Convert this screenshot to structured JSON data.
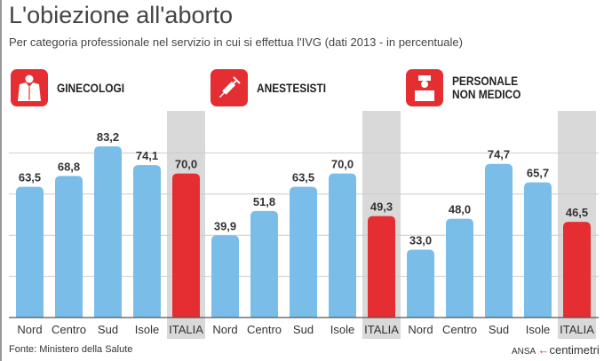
{
  "title": "L'obiezione all'aborto",
  "subtitle": "Per categoria professionale nel servizio in cui si effettua l'IVG (dati 2013 - in percentuale)",
  "source": "Fonte: Ministero della Salute",
  "logo": {
    "ansa": "ANSA",
    "brand": "centimetri"
  },
  "colors": {
    "regional": "#79bde8",
    "italia": "#e52e31",
    "highlight": "#d9d9d9",
    "icon_bg": "#e52e31"
  },
  "chart_data": [
    {
      "type": "bar",
      "title": "GINECOLOGI",
      "icon": "doctor-coat-icon",
      "categories": [
        "Nord",
        "Centro",
        "Sud",
        "Isole",
        "ITALIA"
      ],
      "values": [
        63.5,
        68.8,
        83.2,
        74.1,
        70.0
      ],
      "labels": [
        "63,5",
        "68,8",
        "83,2",
        "74,1",
        "70,0"
      ],
      "ylim": [
        0,
        100
      ],
      "grid": true
    },
    {
      "type": "bar",
      "title": "ANESTESISTI",
      "icon": "syringe-icon",
      "categories": [
        "Nord",
        "Centro",
        "Sud",
        "Isole",
        "ITALIA"
      ],
      "values": [
        39.9,
        51.8,
        63.5,
        70.0,
        49.3
      ],
      "labels": [
        "39,9",
        "51,8",
        "63,5",
        "70,0",
        "49,3"
      ],
      "ylim": [
        0,
        100
      ],
      "grid": true
    },
    {
      "type": "bar",
      "title": "PERSONALE NON MEDICO",
      "title_lines": [
        "PERSONALE",
        "NON MEDICO"
      ],
      "icon": "nurse-icon",
      "categories": [
        "Nord",
        "Centro",
        "Sud",
        "Isole",
        "ITALIA"
      ],
      "values": [
        33.0,
        48.0,
        74.7,
        65.7,
        46.5
      ],
      "labels": [
        "33,0",
        "48,0",
        "74,7",
        "65,7",
        "46,5"
      ],
      "ylim": [
        0,
        100
      ],
      "grid": true
    }
  ]
}
